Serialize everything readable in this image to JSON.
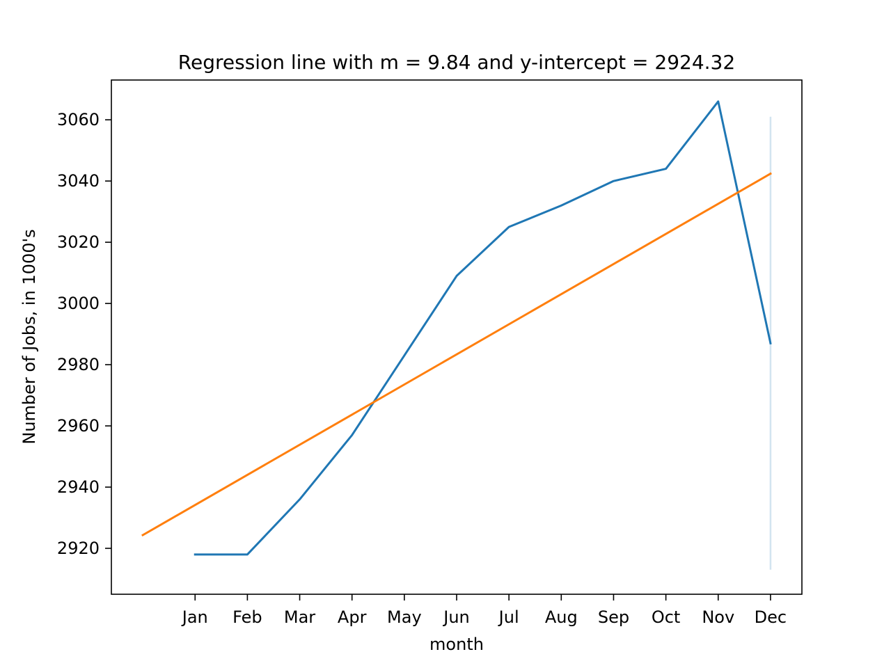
{
  "chart_data": {
    "type": "line",
    "title": "Regression line with m = 9.84 and y-intercept = 2924.32",
    "xlabel": "month",
    "ylabel": "Number of Jobs, in 1000's",
    "x_ticks": [
      "Jan",
      "Feb",
      "Mar",
      "Apr",
      "May",
      "Jun",
      "Jul",
      "Aug",
      "Sep",
      "Oct",
      "Nov",
      "Dec"
    ],
    "x_tick_positions": [
      1,
      2,
      3,
      4,
      5,
      6,
      7,
      8,
      9,
      10,
      11,
      12
    ],
    "xlim": [
      -0.6,
      12.6
    ],
    "ylim": [
      2905,
      3073
    ],
    "y_ticks": [
      2920,
      2940,
      2960,
      2980,
      3000,
      3020,
      3040,
      3060
    ],
    "grid": false,
    "series": [
      {
        "color": "#1f77b4",
        "x": [
          1,
          2,
          3,
          4,
          5,
          6,
          7,
          8,
          9,
          10,
          11,
          12
        ],
        "y": [
          2918,
          2918,
          2936,
          2957,
          2983,
          3009,
          3025,
          3032,
          3040,
          3044,
          3066,
          2987
        ]
      },
      {
        "color": "#ff7f0e",
        "x": [
          0,
          12
        ],
        "y": [
          2924.32,
          3042.4
        ]
      }
    ],
    "vertical_segment": {
      "color": "#1f77b4",
      "opacity": 0.2,
      "x": 12,
      "y": [
        2913,
        3061
      ]
    }
  }
}
